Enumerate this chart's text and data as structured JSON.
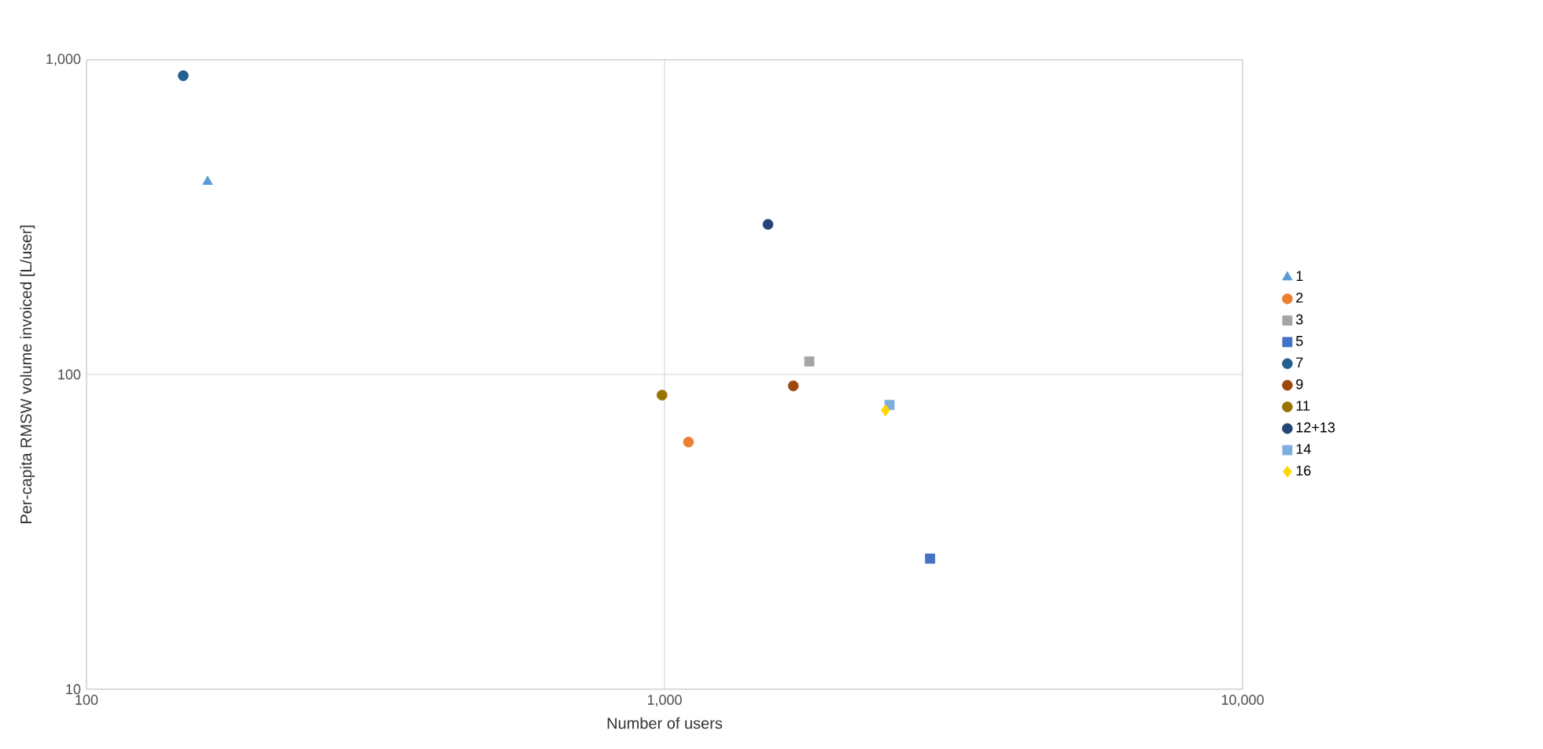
{
  "chart_data": {
    "type": "scatter",
    "xlabel": "Number of users",
    "ylabel": "Per-capita RMSW volume invoiced [L/user]",
    "log": "xy",
    "grid": true,
    "legend": "right",
    "xlim": [
      100,
      10000
    ],
    "xticks": [
      100,
      {
        "value": 1000,
        "label": "1,000"
      },
      {
        "value": 10000,
        "label": "10,000"
      }
    ],
    "ylim": [
      10,
      1000
    ],
    "yticks": [
      10,
      100,
      {
        "value": 1000,
        "label": "1,000"
      }
    ],
    "series": [
      {
        "name": "1",
        "color": "#5b9bd5",
        "marker": "triangle",
        "x": [
          162
        ],
        "values": [
          410
        ]
      },
      {
        "name": "2",
        "color": "#ed7d31",
        "marker": "circle",
        "x": [
          1100
        ],
        "values": [
          61
        ]
      },
      {
        "name": "3",
        "color": "#a5a5a5",
        "marker": "square",
        "x": [
          1780
        ],
        "values": [
          110
        ]
      },
      {
        "name": "5",
        "color": "#4472c4",
        "marker": "square",
        "x": [
          2880
        ],
        "values": [
          26
        ]
      },
      {
        "name": "7",
        "color": "#255e91",
        "marker": "circle",
        "x": [
          147
        ],
        "values": [
          890
        ]
      },
      {
        "name": "9",
        "color": "#9e480e",
        "marker": "circle",
        "x": [
          1670
        ],
        "values": [
          92
        ]
      },
      {
        "name": "11",
        "color": "#997300",
        "marker": "circle",
        "x": [
          990
        ],
        "values": [
          86
        ]
      },
      {
        "name": "12+13",
        "color": "#264478",
        "marker": "circle",
        "x": [
          1510
        ],
        "values": [
          300
        ]
      },
      {
        "name": "14",
        "color": "#7cafdd",
        "marker": "square",
        "x": [
          2450
        ],
        "values": [
          80
        ]
      },
      {
        "name": "16",
        "color": "#ffd700",
        "marker": "diamond",
        "x": [
          2410
        ],
        "values": [
          77
        ]
      }
    ]
  }
}
